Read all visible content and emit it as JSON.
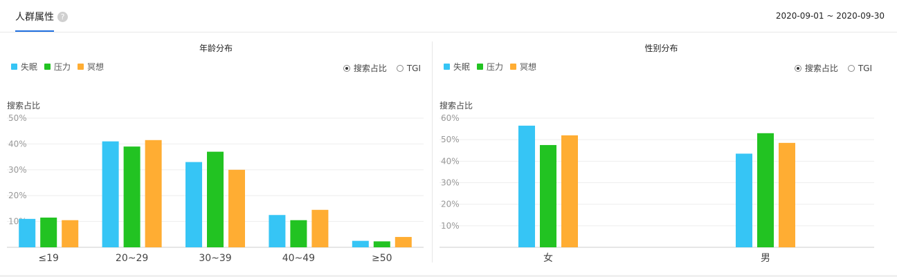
{
  "header": {
    "tab_label": "人群属性",
    "help_icon": "?",
    "date_range": "2020-09-01 ~ 2020-09-30"
  },
  "radio_options": {
    "share": "搜索占比",
    "tgi": "TGI"
  },
  "colors": {
    "失眠": "#36c5f5",
    "压力": "#22c322",
    "冥想": "#ffad33"
  },
  "chart_data": [
    {
      "type": "bar",
      "title": "年龄分布",
      "ylabel": "搜索占比",
      "categories": [
        "≤19",
        "20~29",
        "30~39",
        "40~49",
        "≥50"
      ],
      "series": [
        {
          "name": "失眠",
          "values": [
            11,
            41,
            33,
            12.5,
            2.5
          ]
        },
        {
          "name": "压力",
          "values": [
            11.5,
            39,
            37,
            10.5,
            2.3
          ]
        },
        {
          "name": "冥想",
          "values": [
            10.5,
            41.5,
            30,
            14.5,
            4
          ]
        }
      ],
      "ylim": [
        0,
        50
      ],
      "yticks": [
        "10%",
        "20%",
        "30%",
        "40%",
        "50%"
      ],
      "grid": true,
      "legend": "top-left"
    },
    {
      "type": "bar",
      "title": "性别分布",
      "ylabel": "搜索占比",
      "categories": [
        "女",
        "男"
      ],
      "series": [
        {
          "name": "失眠",
          "values": [
            56.5,
            43.5
          ]
        },
        {
          "name": "压力",
          "values": [
            47.5,
            53
          ]
        },
        {
          "name": "冥想",
          "values": [
            52,
            48.5
          ]
        }
      ],
      "ylim": [
        0,
        60
      ],
      "yticks": [
        "10%",
        "20%",
        "30%",
        "40%",
        "50%",
        "60%"
      ],
      "grid": true,
      "legend": "top-left"
    }
  ]
}
